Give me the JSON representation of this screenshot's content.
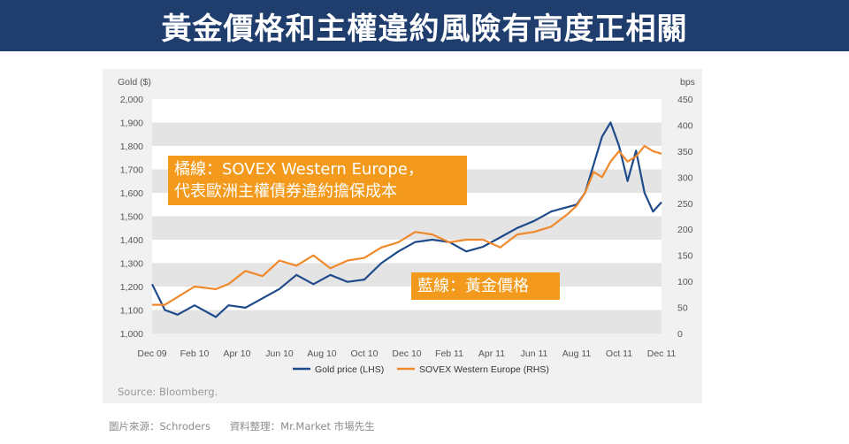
{
  "header": {
    "title": "黃金價格和主權違約風險有高度正相關"
  },
  "annotations": {
    "orange_line_1": "橘線：SOVEX Western Europe，",
    "orange_line_2": "代表歐洲主權債券違約擔保成本",
    "blue_line": "藍線：黃金價格"
  },
  "footer": {
    "source": "Source: Bloomberg.",
    "image_source": "圖片來源：Schroders",
    "compiled_by": "資料整理：Mr.Market  市場先生"
  },
  "colors": {
    "gold": "#1f4b8a",
    "sovex": "#f0892c",
    "header_bg": "#1f3e6e",
    "annotation_bg": "#f39a1c"
  },
  "chart_data": {
    "type": "line",
    "title": "",
    "ylabel_left": "Gold ($)",
    "ylabel_right": "bps",
    "ylim_left": [
      1000,
      2000
    ],
    "ylim_right": [
      0,
      450
    ],
    "yticks_left": [
      "2,000",
      "1,900",
      "1,800",
      "1,700",
      "1,600",
      "1,500",
      "1,400",
      "1,300",
      "1,200",
      "1,100",
      "1,000"
    ],
    "yticks_right": [
      "450",
      "400",
      "350",
      "300",
      "250",
      "200",
      "150",
      "100",
      "50",
      "0"
    ],
    "x_ticks": [
      "Dec 09",
      "Feb 10",
      "Apr 10",
      "Jun 10",
      "Aug 10",
      "Oct 10",
      "Dec 10",
      "Feb 11",
      "Apr 11",
      "Jun 11",
      "Aug 11",
      "Oct 11",
      "Dec 11"
    ],
    "legend": [
      "Gold price (LHS)",
      "SOVEX Western Europe (RHS)"
    ],
    "legend_position": "bottom-center",
    "series": [
      {
        "name": "Gold price (LHS)",
        "axis": "left",
        "x": [
          0,
          0.3,
          0.6,
          1,
          1.5,
          1.8,
          2.2,
          2.6,
          3,
          3.4,
          3.8,
          4.2,
          4.6,
          5,
          5.4,
          5.8,
          6.2,
          6.6,
          7,
          7.4,
          7.8,
          8.2,
          8.6,
          9,
          9.4,
          9.8,
          10,
          10.2,
          10.4,
          10.6,
          10.8,
          11,
          11.2,
          11.4,
          11.6,
          11.8,
          12
        ],
        "values": [
          1210,
          1100,
          1080,
          1120,
          1070,
          1120,
          1110,
          1150,
          1190,
          1250,
          1210,
          1250,
          1220,
          1230,
          1300,
          1350,
          1390,
          1400,
          1390,
          1350,
          1370,
          1410,
          1450,
          1480,
          1520,
          1540,
          1550,
          1600,
          1720,
          1840,
          1900,
          1800,
          1650,
          1780,
          1600,
          1520,
          1560
        ]
      },
      {
        "name": "SOVEX Western Europe (RHS)",
        "axis": "right",
        "x": [
          0,
          0.3,
          0.6,
          1,
          1.5,
          1.8,
          2.2,
          2.6,
          3,
          3.4,
          3.8,
          4.2,
          4.6,
          5,
          5.4,
          5.8,
          6.2,
          6.6,
          7,
          7.4,
          7.8,
          8.2,
          8.6,
          9,
          9.4,
          9.8,
          10,
          10.2,
          10.4,
          10.6,
          10.8,
          11,
          11.2,
          11.4,
          11.6,
          11.8,
          12
        ],
        "values": [
          55,
          55,
          70,
          90,
          85,
          95,
          120,
          110,
          140,
          130,
          150,
          125,
          140,
          145,
          165,
          175,
          195,
          190,
          175,
          180,
          180,
          165,
          190,
          195,
          205,
          230,
          245,
          270,
          310,
          300,
          330,
          350,
          330,
          340,
          360,
          350,
          345
        ]
      }
    ]
  }
}
